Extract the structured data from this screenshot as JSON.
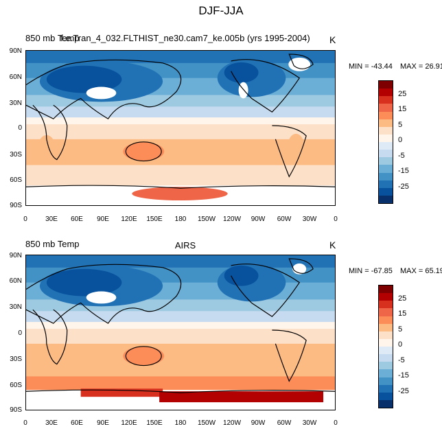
{
  "title": "DJF-JJA",
  "panels": [
    {
      "left_label": "850 mb Temp",
      "center_label": "f.e.Tran_4_032.FLTHIST_ne30.cam7_ke.005b (yrs 1995-2004)",
      "right_label": "K",
      "min_label": "MIN = -43.44",
      "max_label": "MAX =  26.91"
    },
    {
      "left_label": "850 mb Temp",
      "center_label": "AIRS",
      "right_label": "K",
      "min_label": "MIN = -67.85",
      "max_label": "MAX =  65.19"
    }
  ],
  "lat_ticks": [
    "90N",
    "60N",
    "30N",
    "0",
    "30S",
    "60S",
    "90S"
  ],
  "lon_ticks": [
    "0",
    "30E",
    "60E",
    "90E",
    "120E",
    "150E",
    "180",
    "150W",
    "120W",
    "90W",
    "60W",
    "30W",
    "0"
  ],
  "colorbar": {
    "labels": [
      "25",
      "15",
      "5",
      "0",
      "-5",
      "-15",
      "-25"
    ],
    "colors": [
      "#7f0000",
      "#b30000",
      "#d7301f",
      "#ef6548",
      "#fc8d59",
      "#fdbb84",
      "#fde0c8",
      "#fff5eb",
      "#deebf7",
      "#c6dbef",
      "#9ecae1",
      "#6baed6",
      "#4292c6",
      "#2171b5",
      "#08519c",
      "#08306b"
    ]
  }
}
